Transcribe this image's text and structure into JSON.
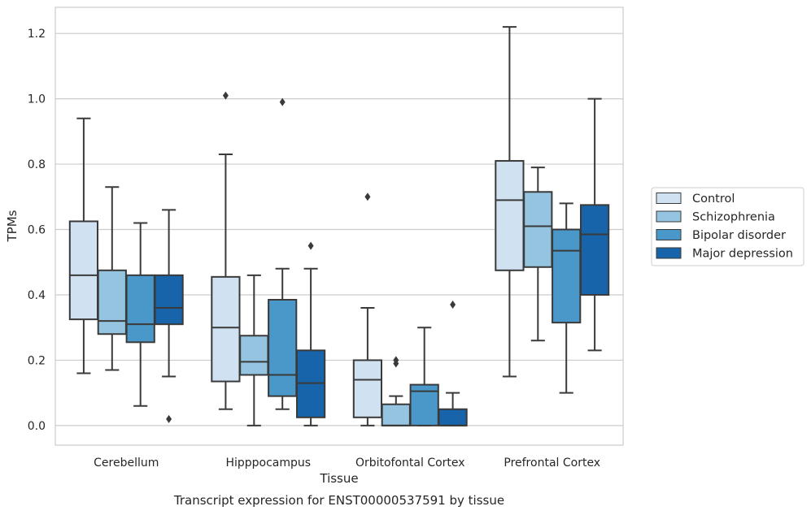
{
  "chart_data": {
    "type": "boxplot",
    "xlabel": "Tissue",
    "ylabel": "TPMs",
    "ylim": [
      -0.06,
      1.28
    ],
    "yticks": [
      0.0,
      0.2,
      0.4,
      0.6,
      0.8,
      1.0,
      1.2
    ],
    "ytick_labels": [
      "0.0",
      "0.2",
      "0.4",
      "0.6",
      "0.8",
      "1.0",
      "1.2"
    ],
    "grid": "horizontal",
    "legend_position": "right",
    "categories": [
      "Cerebellum",
      "Hipppocampus",
      "Orbitofontal Cortex",
      "Prefrontal Cortex"
    ],
    "series": [
      {
        "name": "Control",
        "color": "#d0e1f2",
        "boxes": [
          {
            "whislo": 0.16,
            "q1": 0.325,
            "med": 0.46,
            "q3": 0.625,
            "whishi": 0.94,
            "fliers": []
          },
          {
            "whislo": 0.05,
            "q1": 0.135,
            "med": 0.3,
            "q3": 0.455,
            "whishi": 0.83,
            "fliers": [
              1.01
            ]
          },
          {
            "whislo": 0.0,
            "q1": 0.025,
            "med": 0.14,
            "q3": 0.2,
            "whishi": 0.36,
            "fliers": [
              0.7
            ]
          },
          {
            "whislo": 0.15,
            "q1": 0.475,
            "med": 0.69,
            "q3": 0.81,
            "whishi": 1.22,
            "fliers": []
          }
        ]
      },
      {
        "name": "Schizophrenia",
        "color": "#94c4df",
        "boxes": [
          {
            "whislo": 0.17,
            "q1": 0.28,
            "med": 0.32,
            "q3": 0.475,
            "whishi": 0.73,
            "fliers": []
          },
          {
            "whislo": 0.0,
            "q1": 0.155,
            "med": 0.195,
            "q3": 0.275,
            "whishi": 0.46,
            "fliers": []
          },
          {
            "whislo": 0.0,
            "q1": 0.0,
            "med": 0.0,
            "q3": 0.065,
            "whishi": 0.09,
            "fliers": [
              0.19,
              0.2
            ]
          },
          {
            "whislo": 0.26,
            "q1": 0.485,
            "med": 0.61,
            "q3": 0.715,
            "whishi": 0.79,
            "fliers": []
          }
        ]
      },
      {
        "name": "Bipolar disorder",
        "color": "#4a98c9",
        "boxes": [
          {
            "whislo": 0.06,
            "q1": 0.255,
            "med": 0.31,
            "q3": 0.46,
            "whishi": 0.62,
            "fliers": []
          },
          {
            "whislo": 0.05,
            "q1": 0.09,
            "med": 0.155,
            "q3": 0.385,
            "whishi": 0.48,
            "fliers": [
              0.99
            ]
          },
          {
            "whislo": 0.0,
            "q1": 0.0,
            "med": 0.105,
            "q3": 0.125,
            "whishi": 0.3,
            "fliers": []
          },
          {
            "whislo": 0.1,
            "q1": 0.315,
            "med": 0.535,
            "q3": 0.6,
            "whishi": 0.68,
            "fliers": []
          }
        ]
      },
      {
        "name": "Major depression",
        "color": "#1764ab",
        "boxes": [
          {
            "whislo": 0.15,
            "q1": 0.31,
            "med": 0.36,
            "q3": 0.46,
            "whishi": 0.66,
            "fliers": [
              0.02
            ]
          },
          {
            "whislo": 0.0,
            "q1": 0.025,
            "med": 0.13,
            "q3": 0.23,
            "whishi": 0.48,
            "fliers": [
              0.55
            ]
          },
          {
            "whislo": 0.0,
            "q1": 0.0,
            "med": 0.0,
            "q3": 0.05,
            "whishi": 0.1,
            "fliers": [
              0.37
            ]
          },
          {
            "whislo": 0.23,
            "q1": 0.4,
            "med": 0.585,
            "q3": 0.675,
            "whishi": 1.0,
            "fliers": []
          }
        ]
      }
    ]
  },
  "caption": "Transcript expression for ENST00000537591 by tissue"
}
